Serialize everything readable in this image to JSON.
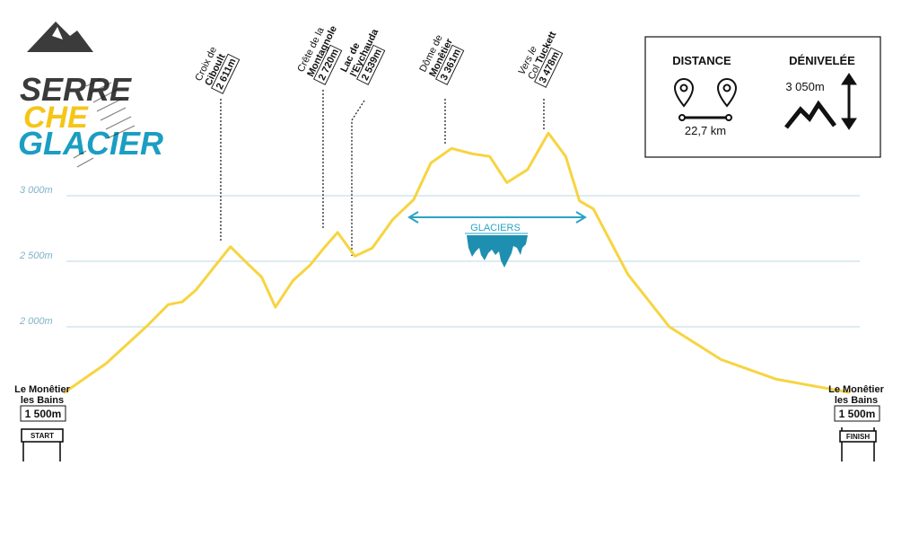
{
  "logo": {
    "line1": "SERRE",
    "line2": "CHE",
    "line3": "GLACIER",
    "colors": {
      "line1": "#3b3b3b",
      "line2": "#f5c518",
      "line3": "#1a9ec2"
    }
  },
  "chart_data": {
    "type": "line",
    "y_ticks": [
      "3 000m",
      "2 500m",
      "2 000m"
    ],
    "tick_values": [
      3000,
      2500,
      2000
    ],
    "series_color": "#f7d440",
    "profile": [
      {
        "x": 0.0,
        "y": 1500
      },
      {
        "x": 1.2,
        "y": 1720
      },
      {
        "x": 2.4,
        "y": 2010
      },
      {
        "x": 3.0,
        "y": 2170
      },
      {
        "x": 3.4,
        "y": 2190
      },
      {
        "x": 3.8,
        "y": 2280
      },
      {
        "x": 4.4,
        "y": 2480
      },
      {
        "x": 4.8,
        "y": 2611
      },
      {
        "x": 5.3,
        "y": 2480
      },
      {
        "x": 5.7,
        "y": 2380
      },
      {
        "x": 6.1,
        "y": 2150
      },
      {
        "x": 6.6,
        "y": 2350
      },
      {
        "x": 7.1,
        "y": 2470
      },
      {
        "x": 7.5,
        "y": 2600
      },
      {
        "x": 7.9,
        "y": 2720
      },
      {
        "x": 8.4,
        "y": 2539
      },
      {
        "x": 8.9,
        "y": 2600
      },
      {
        "x": 9.5,
        "y": 2820
      },
      {
        "x": 10.1,
        "y": 2970
      },
      {
        "x": 10.6,
        "y": 3250
      },
      {
        "x": 11.2,
        "y": 3361
      },
      {
        "x": 11.8,
        "y": 3320
      },
      {
        "x": 12.3,
        "y": 3300
      },
      {
        "x": 12.8,
        "y": 3100
      },
      {
        "x": 13.4,
        "y": 3200
      },
      {
        "x": 14.0,
        "y": 3478
      },
      {
        "x": 14.5,
        "y": 3300
      },
      {
        "x": 14.9,
        "y": 2960
      },
      {
        "x": 15.3,
        "y": 2900
      },
      {
        "x": 16.3,
        "y": 2400
      },
      {
        "x": 17.5,
        "y": 2000
      },
      {
        "x": 19.0,
        "y": 1750
      },
      {
        "x": 20.6,
        "y": 1600
      },
      {
        "x": 22.7,
        "y": 1500
      }
    ],
    "points_of_interest": [
      {
        "line1": "Croix de",
        "line1_style": "normal",
        "line2": "Ciboult",
        "elev": "2 611m",
        "value": 2611
      },
      {
        "line1": "Crête de la",
        "line1_style": "normal",
        "line2": "Montagnole",
        "elev": "2 720m",
        "value": 2720
      },
      {
        "line1": "Lac de",
        "line1_style": "bold",
        "line2": "l'Eychauda",
        "elev": "2 539m",
        "value": 2539
      },
      {
        "line1": "Dôme de",
        "line1_style": "normal",
        "line2": "Monêtier",
        "elev": "3 361m",
        "value": 3361
      },
      {
        "line1": "Vers le",
        "line1_style": "italic",
        "line2": "Col",
        "line2_bold": "Tuckett",
        "elev": "3 478m",
        "value": 3478
      }
    ],
    "glaciers_label": "GLACIERS"
  },
  "start": {
    "name_line1": "Le Monêtier",
    "name_line2": "les Bains",
    "elevation": "1 500m",
    "sign": "START"
  },
  "finish": {
    "name_line1": "Le Monêtier",
    "name_line2": "les Bains",
    "elevation": "1 500m",
    "sign": "FINISH"
  },
  "stats": {
    "distance_label": "DISTANCE",
    "distance_value": "22,7 km",
    "elevation_label": "DÉNIVELÉE",
    "elevation_value": "3 050m"
  }
}
